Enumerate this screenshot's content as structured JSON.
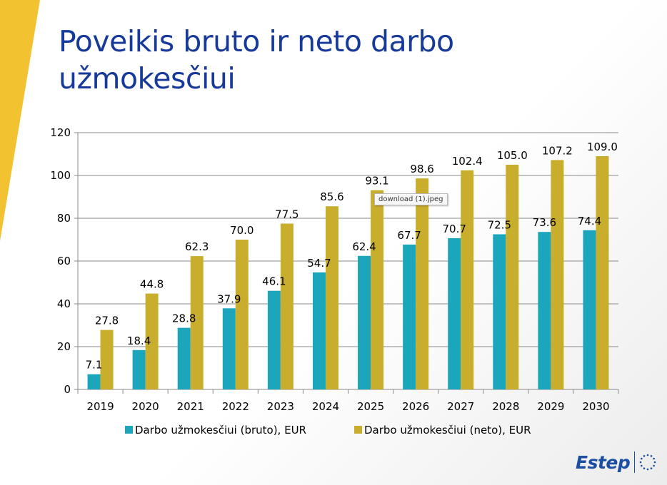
{
  "title": {
    "line1": "Poveikis bruto ir neto darbo",
    "line2": "užmokesčiui"
  },
  "tooltip": "download (1).jpeg",
  "logo": {
    "text": "Estep",
    "emblem": "eu-stars-icon"
  },
  "colors": {
    "accent_yellow": "#f2c230",
    "title_blue": "#16399a",
    "series_bruto": "#1ba6bb",
    "series_neto": "#c9ad2c"
  },
  "chart_data": {
    "type": "bar",
    "categories": [
      "2019",
      "2020",
      "2021",
      "2022",
      "2023",
      "2024",
      "2025",
      "2026",
      "2027",
      "2028",
      "2029",
      "2030"
    ],
    "series": [
      {
        "name": "Darbo užmokesčiui (bruto), EUR",
        "color": "#1ba6bb",
        "values": [
          7.1,
          18.4,
          28.8,
          37.9,
          46.1,
          54.7,
          62.4,
          67.7,
          70.7,
          72.5,
          73.6,
          74.4
        ],
        "labels": [
          "7.1",
          "18.4",
          "28.8",
          "37.9",
          "46.1",
          "54.7",
          "62.4",
          "67.7",
          "70.7",
          "72.5",
          "73.6",
          "74.4"
        ]
      },
      {
        "name": "Darbo užmokesčiui (neto), EUR",
        "color": "#c9ad2c",
        "values": [
          27.8,
          44.8,
          62.3,
          70.0,
          77.5,
          85.6,
          93.1,
          98.6,
          102.4,
          105.0,
          107.2,
          109.0
        ],
        "labels": [
          "27.8",
          "44.8",
          "62.3",
          "70.0",
          "77.5",
          "85.6",
          "93.1",
          "98.6",
          "102.4",
          "105.0",
          "107.2",
          "109.0"
        ]
      }
    ],
    "yticks": [
      "0",
      "20",
      "40",
      "60",
      "80",
      "100",
      "120"
    ],
    "ylim": [
      0,
      120
    ],
    "grid": true,
    "legend": "bottom"
  }
}
